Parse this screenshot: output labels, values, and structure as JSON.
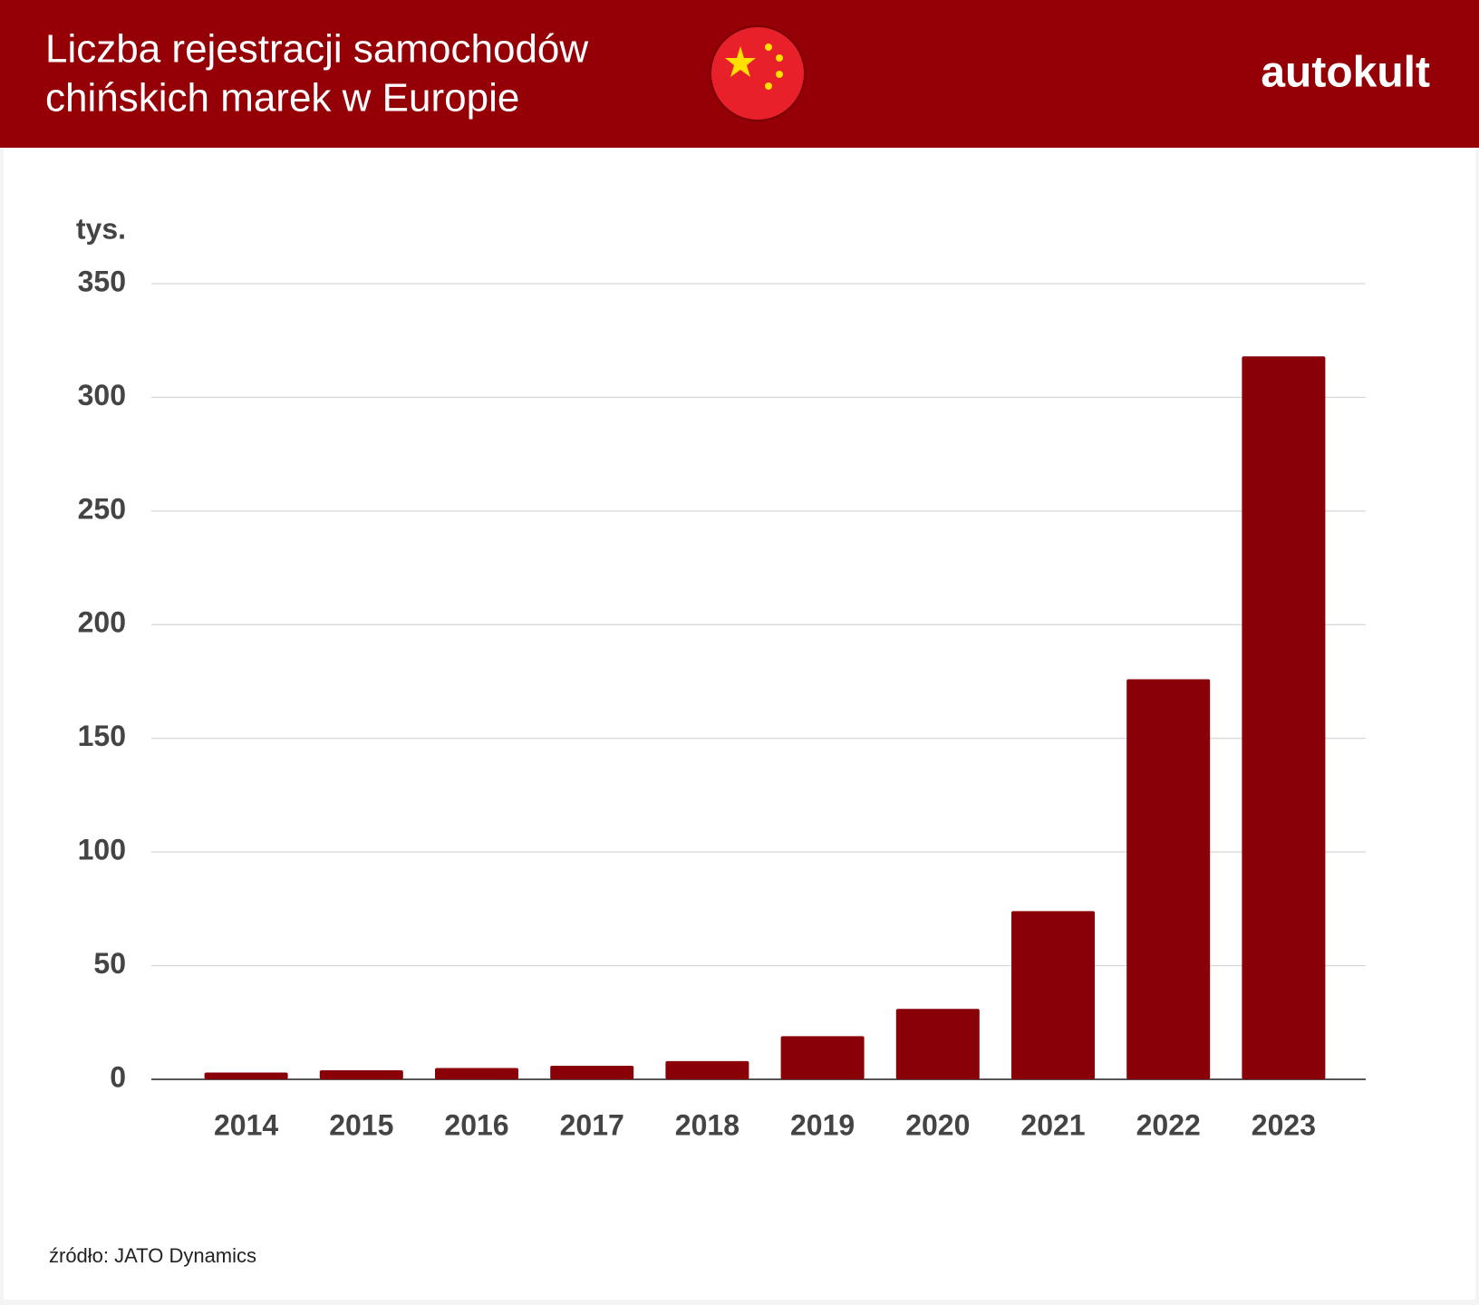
{
  "header": {
    "title_lines": [
      "Liczba rejestracji samochodów",
      "chińskich marek w Europie"
    ],
    "brand": "autokult"
  },
  "chart_data": {
    "type": "bar",
    "y_unit_label": "tys.",
    "categories": [
      "2014",
      "2015",
      "2016",
      "2017",
      "2018",
      "2019",
      "2020",
      "2021",
      "2022",
      "2023"
    ],
    "values": [
      3,
      4,
      5,
      6,
      8,
      19,
      31,
      74,
      176,
      318
    ],
    "color": "#8a0008",
    "ylim": [
      0,
      350
    ],
    "yticks": [
      0,
      50,
      100,
      150,
      200,
      250,
      300,
      350
    ],
    "grid": true
  },
  "footer": {
    "source": "źródło: JATO Dynamics"
  }
}
